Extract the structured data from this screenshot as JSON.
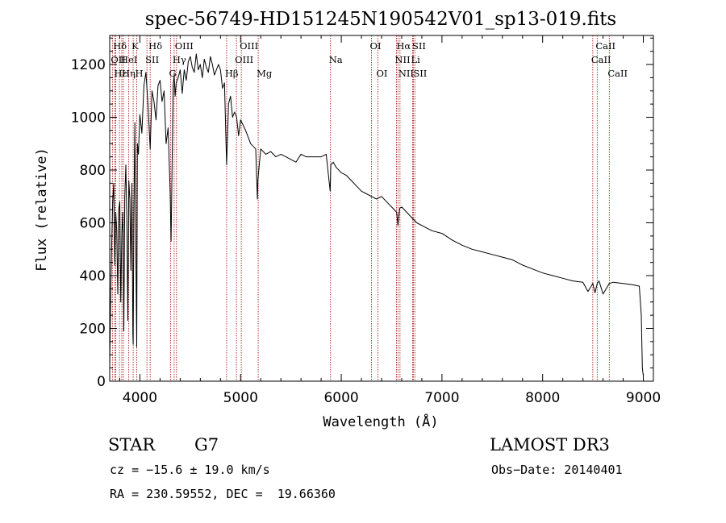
{
  "chart_data": {
    "type": "line",
    "title": "spec-56749-HD151245N190542V01_sp13-019.fits",
    "xlabel": "Wavelength (Å)",
    "ylabel": "Flux (relative)",
    "xlim": [
      3700,
      9100
    ],
    "ylim": [
      0,
      1310
    ],
    "xticks": [
      4000,
      5000,
      6000,
      7000,
      8000,
      9000
    ],
    "yticks": [
      0,
      200,
      400,
      600,
      800,
      1000,
      1200
    ],
    "series": [
      {
        "name": "flux",
        "x": [
          3700,
          3710,
          3720,
          3730,
          3740,
          3750,
          3760,
          3770,
          3780,
          3790,
          3800,
          3810,
          3820,
          3830,
          3840,
          3850,
          3860,
          3870,
          3880,
          3890,
          3900,
          3910,
          3920,
          3930,
          3933,
          3940,
          3950,
          3960,
          3968,
          3975,
          3985,
          4000,
          4020,
          4040,
          4060,
          4080,
          4102,
          4120,
          4140,
          4160,
          4180,
          4200,
          4220,
          4240,
          4260,
          4280,
          4300,
          4310,
          4330,
          4340,
          4350,
          4360,
          4380,
          4400,
          4420,
          4440,
          4460,
          4480,
          4500,
          4520,
          4540,
          4560,
          4580,
          4600,
          4620,
          4640,
          4660,
          4680,
          4700,
          4720,
          4740,
          4760,
          4780,
          4800,
          4820,
          4840,
          4861,
          4880,
          4900,
          4920,
          4940,
          4960,
          4980,
          5000,
          5050,
          5100,
          5150,
          5167,
          5172,
          5183,
          5200,
          5250,
          5300,
          5350,
          5400,
          5450,
          5500,
          5550,
          5600,
          5650,
          5700,
          5750,
          5800,
          5850,
          5890,
          5893,
          5896,
          5920,
          5950,
          6000,
          6050,
          6100,
          6150,
          6200,
          6250,
          6300,
          6350,
          6400,
          6450,
          6500,
          6550,
          6563,
          6580,
          6600,
          6650,
          6700,
          6750,
          6800,
          6900,
          7000,
          7100,
          7200,
          7300,
          7400,
          7500,
          7600,
          7700,
          7800,
          7900,
          8000,
          8100,
          8200,
          8300,
          8400,
          8450,
          8498,
          8520,
          8542,
          8560,
          8600,
          8662,
          8700,
          8800,
          8900,
          8960,
          8980,
          8990,
          9000
        ],
        "values": [
          50,
          330,
          520,
          680,
          750,
          440,
          640,
          570,
          330,
          650,
          680,
          300,
          560,
          640,
          190,
          700,
          820,
          620,
          230,
          760,
          690,
          420,
          750,
          180,
          140,
          640,
          980,
          470,
          130,
          900,
          860,
          1010,
          940,
          1120,
          1170,
          1050,
          880,
          1100,
          1060,
          990,
          1120,
          1140,
          1060,
          1100,
          900,
          960,
          720,
          530,
          1120,
          1160,
          1080,
          1130,
          1150,
          1180,
          1090,
          1180,
          1140,
          1210,
          1230,
          1190,
          1170,
          1240,
          1180,
          1200,
          1150,
          1220,
          1190,
          1170,
          1230,
          1200,
          1160,
          1180,
          1200,
          1180,
          1110,
          1130,
          820,
          1050,
          1080,
          1000,
          1020,
          1000,
          930,
          990,
          950,
          900,
          880,
          690,
          760,
          810,
          880,
          860,
          870,
          850,
          860,
          850,
          840,
          830,
          860,
          850,
          850,
          850,
          850,
          860,
          720,
          770,
          820,
          830,
          810,
          790,
          780,
          760,
          740,
          720,
          710,
          700,
          690,
          700,
          680,
          660,
          640,
          590,
          655,
          660,
          640,
          620,
          600,
          590,
          570,
          560,
          535,
          515,
          500,
          490,
          480,
          470,
          460,
          440,
          425,
          410,
          400,
          390,
          380,
          375,
          340,
          370,
          335,
          370,
          380,
          330,
          370,
          375,
          370,
          365,
          360,
          250,
          50,
          20
        ]
      }
    ],
    "lines": [
      {
        "label": "Hδ",
        "x": 3750,
        "row": 1
      },
      {
        "label": "K",
        "x": 3933,
        "row": 1
      },
      {
        "label": "Hδ",
        "x": 4102,
        "row": 1
      },
      {
        "label": "OIII",
        "x": 4363,
        "row": 1
      },
      {
        "label": "OIII",
        "x": 5007,
        "row": 1
      },
      {
        "label": "OI",
        "x": 6300,
        "row": 1
      },
      {
        "label": "Hα",
        "x": 6563,
        "row": 1
      },
      {
        "label": "SII",
        "x": 6720,
        "row": 1
      },
      {
        "label": "CaII",
        "x": 8542,
        "row": 1
      },
      {
        "label": "OII",
        "x": 3727,
        "row": 2
      },
      {
        "label": "HeI",
        "x": 3820,
        "row": 2
      },
      {
        "label": "SII",
        "x": 4070,
        "row": 2
      },
      {
        "label": "Hγ",
        "x": 4340,
        "row": 2
      },
      {
        "label": "OIII",
        "x": 4959,
        "row": 2
      },
      {
        "label": "Na",
        "x": 5893,
        "row": 2
      },
      {
        "label": "NII",
        "x": 6548,
        "row": 2
      },
      {
        "label": "Li",
        "x": 6708,
        "row": 2
      },
      {
        "label": "CaII",
        "x": 8498,
        "row": 2
      },
      {
        "label": "Hε",
        "x": 3760,
        "row": 3
      },
      {
        "label": "Hη",
        "x": 3836,
        "row": 3
      },
      {
        "label": "H",
        "x": 3968,
        "row": 3
      },
      {
        "label": "G",
        "x": 4305,
        "row": 3
      },
      {
        "label": "Hβ",
        "x": 4861,
        "row": 3
      },
      {
        "label": "Mg",
        "x": 5175,
        "row": 3
      },
      {
        "label": "OI",
        "x": 6364,
        "row": 3
      },
      {
        "label": "NII",
        "x": 6583,
        "row": 3
      },
      {
        "label": "SII",
        "x": 6731,
        "row": 3
      },
      {
        "label": "CaII",
        "x": 8662,
        "row": 3
      }
    ],
    "marker_lines_x": [
      3727,
      3750,
      3760,
      3797,
      3820,
      3836,
      3889,
      3933,
      3968,
      4070,
      4102,
      4305,
      4340,
      4363,
      4861,
      4959,
      5007,
      5175,
      5893,
      6300,
      6364,
      6548,
      6563,
      6583,
      6708,
      6716,
      6731,
      8498,
      8542,
      8662
    ]
  },
  "info": {
    "object_type": "STAR",
    "subclass": "G7",
    "survey": "LAMOST DR3",
    "cz": "cz = −15.6 ± 19.0 km/s",
    "obs_date": "Obs−Date: 20140401",
    "radec": "RA = 230.59552, DEC =  19.66360"
  }
}
